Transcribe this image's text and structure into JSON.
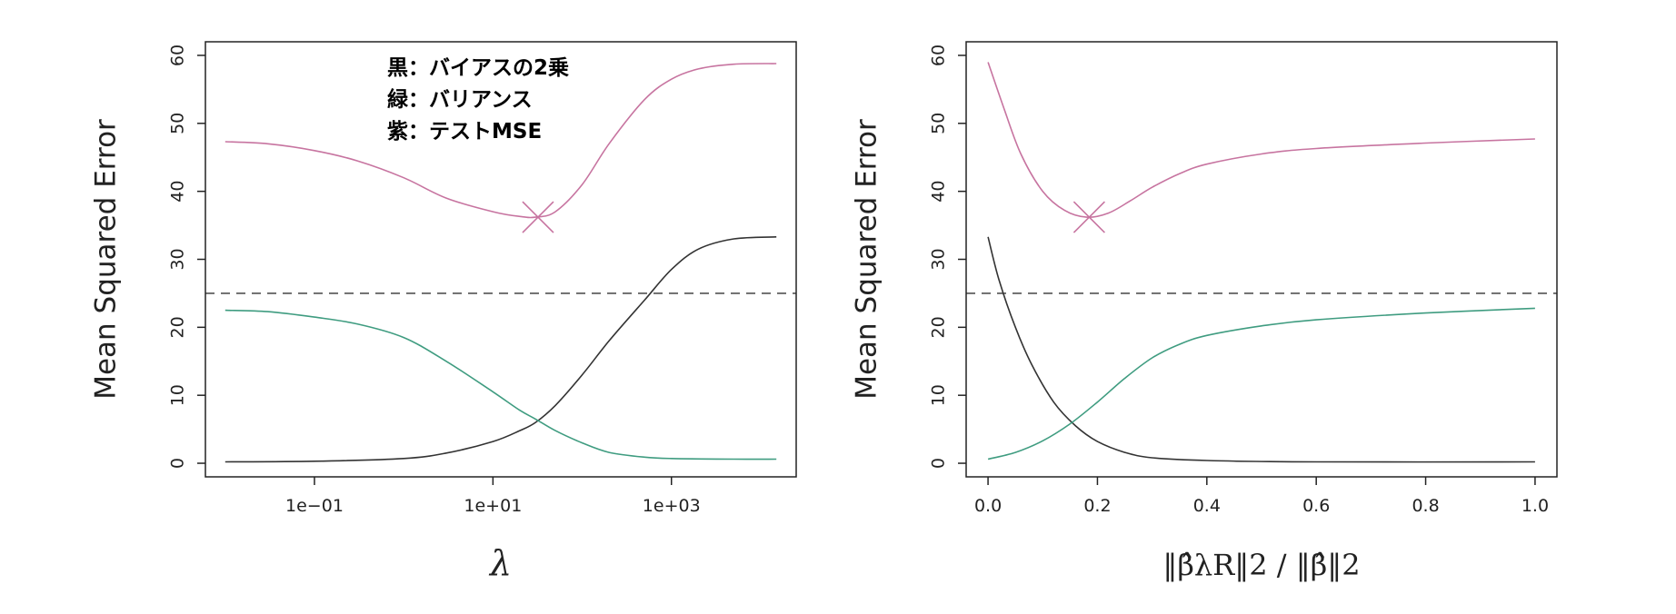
{
  "chart_data": [
    {
      "type": "line",
      "xscale": "log",
      "xlabel": "λ",
      "ylabel": "Mean Squared Error",
      "xlim": [
        0.006,
        25000
      ],
      "ylim": [
        -2,
        62
      ],
      "xticks": [
        {
          "value": 0.1,
          "label": "1e−01"
        },
        {
          "value": 10,
          "label": "1e+01"
        },
        {
          "value": 1000,
          "label": "1e+03"
        }
      ],
      "yticks": [
        0,
        10,
        20,
        30,
        40,
        50,
        60
      ],
      "hline": {
        "y": 25,
        "style": "dashed",
        "color": "#333333"
      },
      "annotations": [
        "黒：バイアスの2乗",
        "緑：バリアンス",
        "紫：テストMSE"
      ],
      "series": [
        {
          "role": "squared-bias",
          "color": "#333333",
          "points": [
            [
              0.01,
              0.2
            ],
            [
              0.1,
              0.3
            ],
            [
              1,
              0.7
            ],
            [
              3,
              1.5
            ],
            [
              10,
              3.2
            ],
            [
              20,
              4.8
            ],
            [
              30,
              6
            ],
            [
              50,
              8.5
            ],
            [
              100,
              13
            ],
            [
              200,
              18
            ],
            [
              500,
              24
            ],
            [
              1000,
              28.5
            ],
            [
              2000,
              31.5
            ],
            [
              5000,
              33
            ],
            [
              15000,
              33.3
            ]
          ]
        },
        {
          "role": "variance",
          "color": "#3f9c80",
          "points": [
            [
              0.01,
              22.5
            ],
            [
              0.03,
              22.3
            ],
            [
              0.1,
              21.5
            ],
            [
              0.3,
              20.5
            ],
            [
              1,
              18.5
            ],
            [
              3,
              15
            ],
            [
              10,
              10.5
            ],
            [
              20,
              7.8
            ],
            [
              30,
              6.5
            ],
            [
              50,
              4.8
            ],
            [
              100,
              3
            ],
            [
              200,
              1.6
            ],
            [
              500,
              0.9
            ],
            [
              1000,
              0.7
            ],
            [
              5000,
              0.6
            ],
            [
              15000,
              0.6
            ]
          ]
        },
        {
          "role": "test-mse",
          "color": "#c774a0",
          "points": [
            [
              0.01,
              47.3
            ],
            [
              0.03,
              47
            ],
            [
              0.1,
              46
            ],
            [
              0.3,
              44.5
            ],
            [
              1,
              42
            ],
            [
              3,
              39
            ],
            [
              10,
              37
            ],
            [
              20,
              36.3
            ],
            [
              30,
              36.2
            ],
            [
              50,
              37
            ],
            [
              100,
              41
            ],
            [
              200,
              47
            ],
            [
              500,
              53.5
            ],
            [
              1000,
              56.5
            ],
            [
              2000,
              58
            ],
            [
              5000,
              58.7
            ],
            [
              15000,
              58.8
            ]
          ]
        }
      ],
      "min_marker": {
        "x": 32,
        "y": 36.2,
        "symbol": "×",
        "color": "#c774a0"
      }
    },
    {
      "type": "line",
      "xlabel": "‖β̂λR‖2 / ‖β̂‖2",
      "ylabel": "Mean Squared Error",
      "xlim": [
        -0.04,
        1.04
      ],
      "ylim": [
        -2,
        62
      ],
      "xticks": [
        {
          "value": 0.0,
          "label": "0.0"
        },
        {
          "value": 0.2,
          "label": "0.2"
        },
        {
          "value": 0.4,
          "label": "0.4"
        },
        {
          "value": 0.6,
          "label": "0.6"
        },
        {
          "value": 0.8,
          "label": "0.8"
        },
        {
          "value": 1.0,
          "label": "1.0"
        }
      ],
      "yticks": [
        0,
        10,
        20,
        30,
        40,
        50,
        60
      ],
      "hline": {
        "y": 25,
        "style": "dashed",
        "color": "#333333"
      },
      "series": [
        {
          "role": "squared-bias",
          "color": "#333333",
          "points": [
            [
              0,
              33.3
            ],
            [
              0.02,
              27
            ],
            [
              0.05,
              20
            ],
            [
              0.08,
              14.5
            ],
            [
              0.12,
              9
            ],
            [
              0.16,
              5.5
            ],
            [
              0.2,
              3.2
            ],
            [
              0.25,
              1.6
            ],
            [
              0.3,
              0.8
            ],
            [
              0.4,
              0.4
            ],
            [
              0.6,
              0.2
            ],
            [
              1,
              0.2
            ]
          ]
        },
        {
          "role": "variance",
          "color": "#3f9c80",
          "points": [
            [
              0,
              0.6
            ],
            [
              0.05,
              1.6
            ],
            [
              0.1,
              3.3
            ],
            [
              0.15,
              5.8
            ],
            [
              0.2,
              9
            ],
            [
              0.25,
              12.5
            ],
            [
              0.3,
              15.5
            ],
            [
              0.35,
              17.5
            ],
            [
              0.4,
              18.8
            ],
            [
              0.5,
              20.2
            ],
            [
              0.6,
              21.1
            ],
            [
              0.8,
              22.1
            ],
            [
              1,
              22.8
            ]
          ]
        },
        {
          "role": "test-mse",
          "color": "#c774a0",
          "points": [
            [
              0,
              59
            ],
            [
              0.03,
              52
            ],
            [
              0.06,
              45.5
            ],
            [
              0.1,
              40
            ],
            [
              0.14,
              37.2
            ],
            [
              0.18,
              36.2
            ],
            [
              0.22,
              36.8
            ],
            [
              0.26,
              38.6
            ],
            [
              0.3,
              40.6
            ],
            [
              0.35,
              42.6
            ],
            [
              0.4,
              44
            ],
            [
              0.5,
              45.5
            ],
            [
              0.6,
              46.3
            ],
            [
              0.8,
              47.1
            ],
            [
              1,
              47.7
            ]
          ]
        }
      ],
      "min_marker": {
        "x": 0.185,
        "y": 36.2,
        "symbol": "×",
        "color": "#c774a0"
      }
    }
  ]
}
